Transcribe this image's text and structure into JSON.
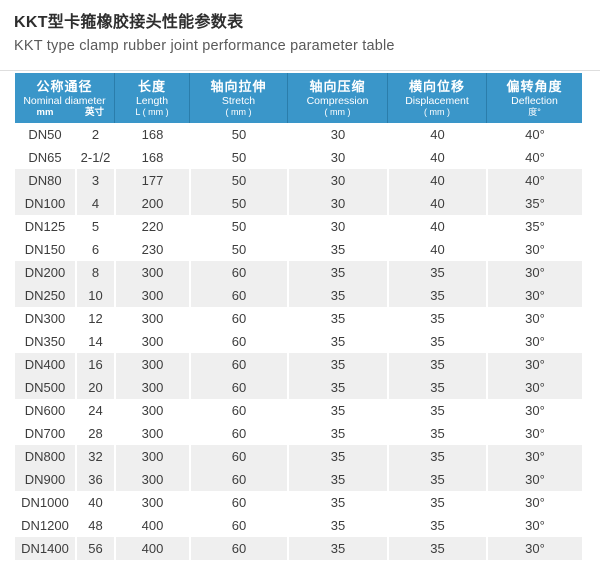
{
  "header": {
    "title_zh": "KKT型卡箍橡胶接头性能参数表",
    "title_en": "KKT type clamp rubber joint performance parameter table"
  },
  "table": {
    "columns": [
      {
        "zh": "公称通径",
        "en": "Nominal diameter",
        "sub": [
          "mm",
          "英寸"
        ]
      },
      {
        "zh": "长度",
        "en": "Length",
        "unit": "L ( mm )"
      },
      {
        "zh": "轴向拉伸",
        "en": "Stretch",
        "unit": "( mm )"
      },
      {
        "zh": "轴向压缩",
        "en": "Compression",
        "unit": "( mm )"
      },
      {
        "zh": "横向位移",
        "en": "Displacement",
        "unit": "( mm )"
      },
      {
        "zh": "偏转角度",
        "en": "Deflection",
        "unit": "度°"
      }
    ],
    "rows": [
      [
        "DN50",
        "2",
        "168",
        "50",
        "30",
        "40",
        "40°"
      ],
      [
        "DN65",
        "2-1/2",
        "168",
        "50",
        "30",
        "40",
        "40°"
      ],
      [
        "DN80",
        "3",
        "177",
        "50",
        "30",
        "40",
        "40°"
      ],
      [
        "DN100",
        "4",
        "200",
        "50",
        "30",
        "40",
        "35°"
      ],
      [
        "DN125",
        "5",
        "220",
        "50",
        "30",
        "40",
        "35°"
      ],
      [
        "DN150",
        "6",
        "230",
        "50",
        "35",
        "40",
        "30°"
      ],
      [
        "DN200",
        "8",
        "300",
        "60",
        "35",
        "35",
        "30°"
      ],
      [
        "DN250",
        "10",
        "300",
        "60",
        "35",
        "35",
        "30°"
      ],
      [
        "DN300",
        "12",
        "300",
        "60",
        "35",
        "35",
        "30°"
      ],
      [
        "DN350",
        "14",
        "300",
        "60",
        "35",
        "35",
        "30°"
      ],
      [
        "DN400",
        "16",
        "300",
        "60",
        "35",
        "35",
        "30°"
      ],
      [
        "DN500",
        "20",
        "300",
        "60",
        "35",
        "35",
        "30°"
      ],
      [
        "DN600",
        "24",
        "300",
        "60",
        "35",
        "35",
        "30°"
      ],
      [
        "DN700",
        "28",
        "300",
        "60",
        "35",
        "35",
        "30°"
      ],
      [
        "DN800",
        "32",
        "300",
        "60",
        "35",
        "35",
        "30°"
      ],
      [
        "DN900",
        "36",
        "300",
        "60",
        "35",
        "35",
        "30°"
      ],
      [
        "DN1000",
        "40",
        "300",
        "60",
        "35",
        "35",
        "30°"
      ],
      [
        "DN1200",
        "48",
        "400",
        "60",
        "35",
        "35",
        "30°"
      ],
      [
        "DN1400",
        "56",
        "400",
        "60",
        "35",
        "35",
        "30°"
      ]
    ]
  },
  "colors": {
    "header_bg": "#3a96c9",
    "header_divider": "#2a7dab",
    "row_shade": "#efefef",
    "header_text": "#ffffff",
    "body_text": "#3d3d3d"
  }
}
